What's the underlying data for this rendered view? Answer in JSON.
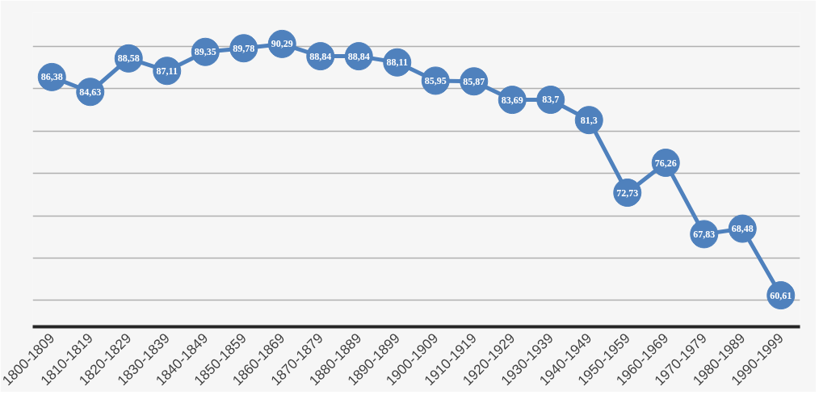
{
  "chart_data": {
    "type": "line",
    "categories": [
      "1800-1809",
      "1810-1819",
      "1820-1829",
      "1830-1839",
      "1840-1849",
      "1850-1859",
      "1860-1869",
      "1870-1879",
      "1880-1889",
      "1890-1899",
      "1900-1909",
      "1910-1919",
      "1920-1929",
      "1930-1939",
      "1940-1949",
      "1950-1959",
      "1960-1969",
      "1970-1979",
      "1980-1989",
      "1990-1999"
    ],
    "series": [
      {
        "color": "#4f81bd",
        "values": [
          86.38,
          84.63,
          88.58,
          87.11,
          89.35,
          89.78,
          90.29,
          88.84,
          88.84,
          88.11,
          85.95,
          85.87,
          83.69,
          83.7,
          81.3,
          72.73,
          76.26,
          67.83,
          68.48,
          60.61
        ],
        "value_labels": [
          "86,38",
          "84,63",
          "88,58",
          "87,11",
          "89,35",
          "89,78",
          "90,29",
          "88,84",
          "88,84",
          "88,11",
          "85,95",
          "85,87",
          "83,69",
          "83,7",
          "81,3",
          "72,73",
          "76,26",
          "67,83",
          "68,48",
          "60,61"
        ]
      }
    ],
    "tick_labels": "x",
    "grid": "y",
    "marker": "circle"
  }
}
